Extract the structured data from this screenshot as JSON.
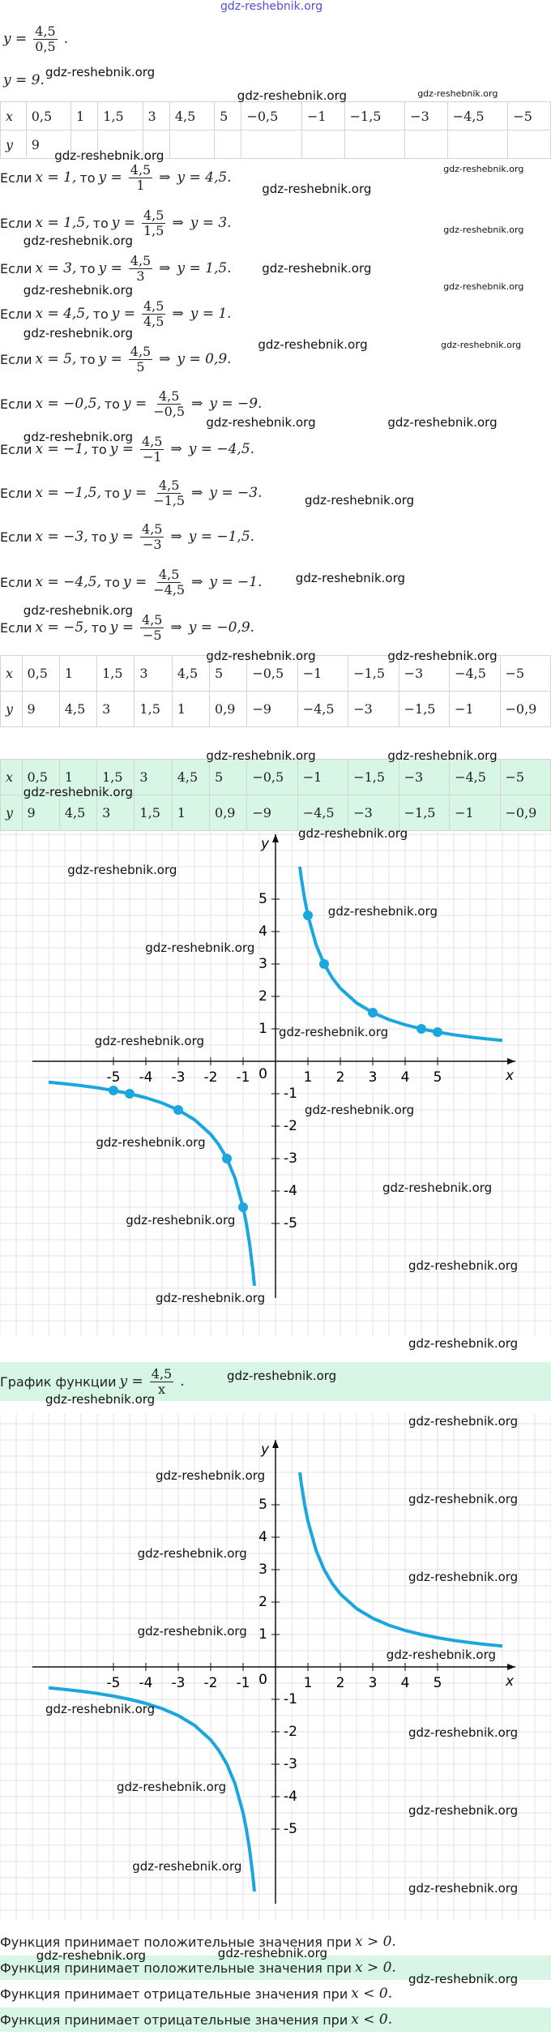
{
  "header_link": "gdz-reshebnik.org",
  "watermark": "gdz-reshebnik.org",
  "intro": {
    "lhs": "y =",
    "num": "4,5",
    "den": "0,5",
    "end": ".",
    "result": "y = 9."
  },
  "table1": {
    "rows": [
      [
        "x",
        "0,5",
        "1",
        "1,5",
        "3",
        "4,5",
        "5",
        "−0,5",
        "−1",
        "−1,5",
        "−3",
        "−4,5",
        "−5"
      ],
      [
        "y",
        "9",
        null,
        null,
        null,
        null,
        null,
        null,
        null,
        null,
        null,
        null,
        null
      ]
    ]
  },
  "steps": [
    {
      "if": "Если",
      "x_eq": "x = 1,",
      "then": "то",
      "y_eq": "y =",
      "num": "4,5",
      "den": "1",
      "arrow": "⇒",
      "result": "y = 4,5."
    },
    {
      "if": "Если",
      "x_eq": "x = 1,5,",
      "then": "то",
      "y_eq": "y =",
      "num": "4,5",
      "den": "1,5",
      "arrow": "⇒",
      "result": "y = 3."
    },
    {
      "if": "Если",
      "x_eq": "x = 3,",
      "then": "то",
      "y_eq": "y =",
      "num": "4,5",
      "den": "3",
      "arrow": "⇒",
      "result": "y = 1,5."
    },
    {
      "if": "Если",
      "x_eq": "x = 4,5,",
      "then": "то",
      "y_eq": "y =",
      "num": "4,5",
      "den": "4,5",
      "arrow": "⇒",
      "result": "y = 1."
    },
    {
      "if": "Если",
      "x_eq": "x = 5,",
      "then": "то",
      "y_eq": "y =",
      "num": "4,5",
      "den": "5",
      "arrow": "⇒",
      "result": "y = 0,9."
    },
    {
      "if": "Если",
      "x_eq": "x = −0,5,",
      "then": "то",
      "y_eq": "y =",
      "num": "4,5",
      "den": "−0,5",
      "arrow": "⇒",
      "result": "y = −9."
    },
    {
      "if": "Если",
      "x_eq": "x = −1,",
      "then": "то",
      "y_eq": "y =",
      "num": "4,5",
      "den": "−1",
      "arrow": "⇒",
      "result": "y = −4,5."
    },
    {
      "if": "Если",
      "x_eq": "x = −1,5,",
      "then": "то",
      "y_eq": "y =",
      "num": "4,5",
      "den": "−1,5",
      "arrow": "⇒",
      "result": "y = −3."
    },
    {
      "if": "Если",
      "x_eq": "x = −3,",
      "then": "то",
      "y_eq": "y =",
      "num": "4,5",
      "den": "−3",
      "arrow": "⇒",
      "result": "y = −1,5."
    },
    {
      "if": "Если",
      "x_eq": "x = −4,5,",
      "then": "то",
      "y_eq": "y =",
      "num": "4,5",
      "den": "−4,5",
      "arrow": "⇒",
      "result": "y = −1."
    },
    {
      "if": "Если",
      "x_eq": "x = −5,",
      "then": "то",
      "y_eq": "y =",
      "num": "4,5",
      "den": "−5",
      "arrow": "⇒",
      "result": "y = −0,9."
    }
  ],
  "table2": {
    "rows": [
      [
        "x",
        "0,5",
        "1",
        "1,5",
        "3",
        "4,5",
        "5",
        "−0,5",
        "−1",
        "−1,5",
        "−3",
        "−4,5",
        "−5"
      ],
      [
        "y",
        "9",
        "4,5",
        "3",
        "1,5",
        "1",
        "0,9",
        "−9",
        "−4,5",
        "−3",
        "−1,5",
        "−1",
        "−0,9"
      ]
    ]
  },
  "table3": {
    "rows": [
      [
        "x",
        "0,5",
        "1",
        "1,5",
        "3",
        "4,5",
        "5",
        "−0,5",
        "−1",
        "−1,5",
        "−3",
        "−4,5",
        "−5"
      ],
      [
        "y",
        "9",
        "4,5",
        "3",
        "1,5",
        "1",
        "0,9",
        "−9",
        "−4,5",
        "−3",
        "−1,5",
        "−1",
        "−0,9"
      ]
    ]
  },
  "chart_data": [
    {
      "type": "line",
      "x_label": "x",
      "y_label": "y",
      "origin_label": "0",
      "xlim": [
        -8.5,
        8.5
      ],
      "ylim": [
        -8.475,
        7.125
      ],
      "xticks": [
        -5,
        -4,
        -3,
        -2,
        -1,
        1,
        2,
        3,
        4,
        5
      ],
      "yticks": [
        -5,
        -4,
        -3,
        -2,
        -1,
        1,
        2,
        3,
        4,
        5
      ],
      "series": [
        {
          "color": "#1ba6e0",
          "x": [
            -7,
            -6.5,
            -6,
            -5.5,
            -5,
            -4.5,
            -4,
            -3.5,
            -3,
            -2.5,
            -2,
            -1.75,
            -1.5,
            -1.25,
            -1,
            -0.9,
            -0.8,
            -0.7,
            -0.65,
            0,
            0.75,
            0.8,
            0.9,
            1,
            1.25,
            1.5,
            1.75,
            2,
            2.5,
            3,
            3.5,
            4,
            4.5,
            5,
            5.5,
            6,
            6.5,
            7
          ],
          "values": [
            -0.6429,
            -0.6923,
            -0.75,
            -0.8182,
            -0.9,
            -1,
            -1.125,
            -1.2857,
            -1.5,
            -1.8,
            -2.25,
            -2.5714,
            -3,
            -3.6,
            -4.5,
            -5,
            -5.625,
            -6.4286,
            -6.9231,
            null,
            6,
            5.625,
            5,
            4.5,
            3.6,
            3,
            2.5714,
            2.25,
            1.8,
            1.5,
            1.2857,
            1.125,
            1,
            0.9,
            0.8182,
            0.75,
            0.6923,
            0.6429
          ]
        },
        {
          "color": "#1ba6e0",
          "markers": true,
          "x": [
            1,
            1.5,
            3,
            4.5,
            5,
            -1,
            -1.5,
            -3,
            -4.5,
            -5
          ],
          "values": [
            4.5,
            3,
            1.5,
            1,
            0.9,
            -4.5,
            -3,
            -1.5,
            -1,
            -0.9
          ]
        }
      ]
    },
    {
      "type": "line",
      "x_label": "x",
      "y_label": "y",
      "origin_label": "0",
      "xlim": [
        -8.5,
        8.5
      ],
      "ylim": [
        -7.8,
        7.8
      ],
      "xticks": [
        -5,
        -4,
        -3,
        -2,
        -1,
        1,
        2,
        3,
        4,
        5
      ],
      "yticks": [
        -5,
        -4,
        -3,
        -2,
        -1,
        1,
        2,
        3,
        4,
        5
      ],
      "series": [
        {
          "color": "#1ba6e0",
          "x": [
            -7,
            -6.5,
            -6,
            -5.5,
            -5,
            -4.5,
            -4,
            -3.5,
            -3,
            -2.5,
            -2,
            -1.75,
            -1.5,
            -1.25,
            -1,
            -0.9,
            -0.8,
            -0.7,
            -0.65,
            0,
            0.75,
            0.8,
            0.9,
            1,
            1.25,
            1.5,
            1.75,
            2,
            2.5,
            3,
            3.5,
            4,
            4.5,
            5,
            5.5,
            6,
            6.5,
            7
          ],
          "values": [
            -0.6429,
            -0.6923,
            -0.75,
            -0.8182,
            -0.9,
            -1,
            -1.125,
            -1.2857,
            -1.5,
            -1.8,
            -2.25,
            -2.5714,
            -3,
            -3.6,
            -4.5,
            -5,
            -5.625,
            -6.4286,
            -6.9231,
            null,
            6,
            5.625,
            5,
            4.5,
            3.6,
            3,
            2.5714,
            2.25,
            1.8,
            1.5,
            1.2857,
            1.125,
            1,
            0.9,
            0.8182,
            0.75,
            0.6923,
            0.6429
          ]
        }
      ]
    }
  ],
  "graph_caption": {
    "text": "График функции",
    "lhs": "y =",
    "num": "4,5",
    "den": "x",
    "end": "."
  },
  "conclusions": [
    {
      "text": "Функция принимает положительные значения при",
      "math": "x > 0."
    },
    {
      "text": "Функция принимает положительные значения при",
      "math": "x > 0.",
      "highlighted": true
    },
    {
      "text": "Функция принимает отрицательные значения при",
      "math": "x < 0."
    },
    {
      "text": "Функция принимает отрицательные значения при",
      "math": "x < 0.",
      "highlighted": true
    }
  ]
}
